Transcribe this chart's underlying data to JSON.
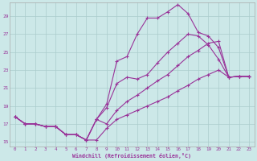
{
  "xlabel": "Windchill (Refroidissement éolien,°C)",
  "x": [
    0,
    1,
    2,
    3,
    4,
    5,
    6,
    7,
    8,
    9,
    10,
    11,
    12,
    13,
    14,
    15,
    16,
    17,
    18,
    19,
    20,
    21,
    22,
    23
  ],
  "line_top": [
    17.8,
    17.0,
    17.0,
    16.7,
    16.7,
    15.8,
    15.8,
    15.2,
    17.5,
    19.2,
    24.0,
    24.5,
    27.0,
    28.8,
    28.8,
    29.5,
    30.3,
    29.3,
    27.2,
    26.8,
    25.5,
    22.2,
    22.3,
    22.3
  ],
  "line_mid1": [
    17.8,
    17.0,
    17.0,
    16.7,
    16.7,
    15.8,
    15.8,
    15.2,
    17.5,
    18.8,
    21.5,
    22.2,
    22.0,
    22.5,
    23.8,
    25.0,
    26.0,
    27.0,
    26.8,
    25.8,
    24.2,
    22.2,
    22.3,
    22.3
  ],
  "line_mid2": [
    17.8,
    17.0,
    17.0,
    16.7,
    16.7,
    15.8,
    15.8,
    15.2,
    17.5,
    17.0,
    18.5,
    19.5,
    20.2,
    21.0,
    21.8,
    22.5,
    23.5,
    24.5,
    25.2,
    26.0,
    26.2,
    22.2,
    22.3,
    22.3
  ],
  "line_bottom": [
    17.8,
    17.0,
    17.0,
    16.7,
    16.7,
    15.8,
    15.8,
    15.2,
    15.2,
    16.5,
    17.5,
    18.0,
    18.5,
    19.0,
    19.5,
    20.0,
    20.7,
    21.3,
    22.0,
    22.5,
    23.0,
    22.2,
    22.3,
    22.3
  ],
  "line_color": "#993399",
  "bg_color": "#cce8e8",
  "grid_color": "#aacccc",
  "ylim": [
    14.5,
    30.5
  ],
  "yticks": [
    15,
    17,
    19,
    21,
    23,
    25,
    27,
    29
  ]
}
